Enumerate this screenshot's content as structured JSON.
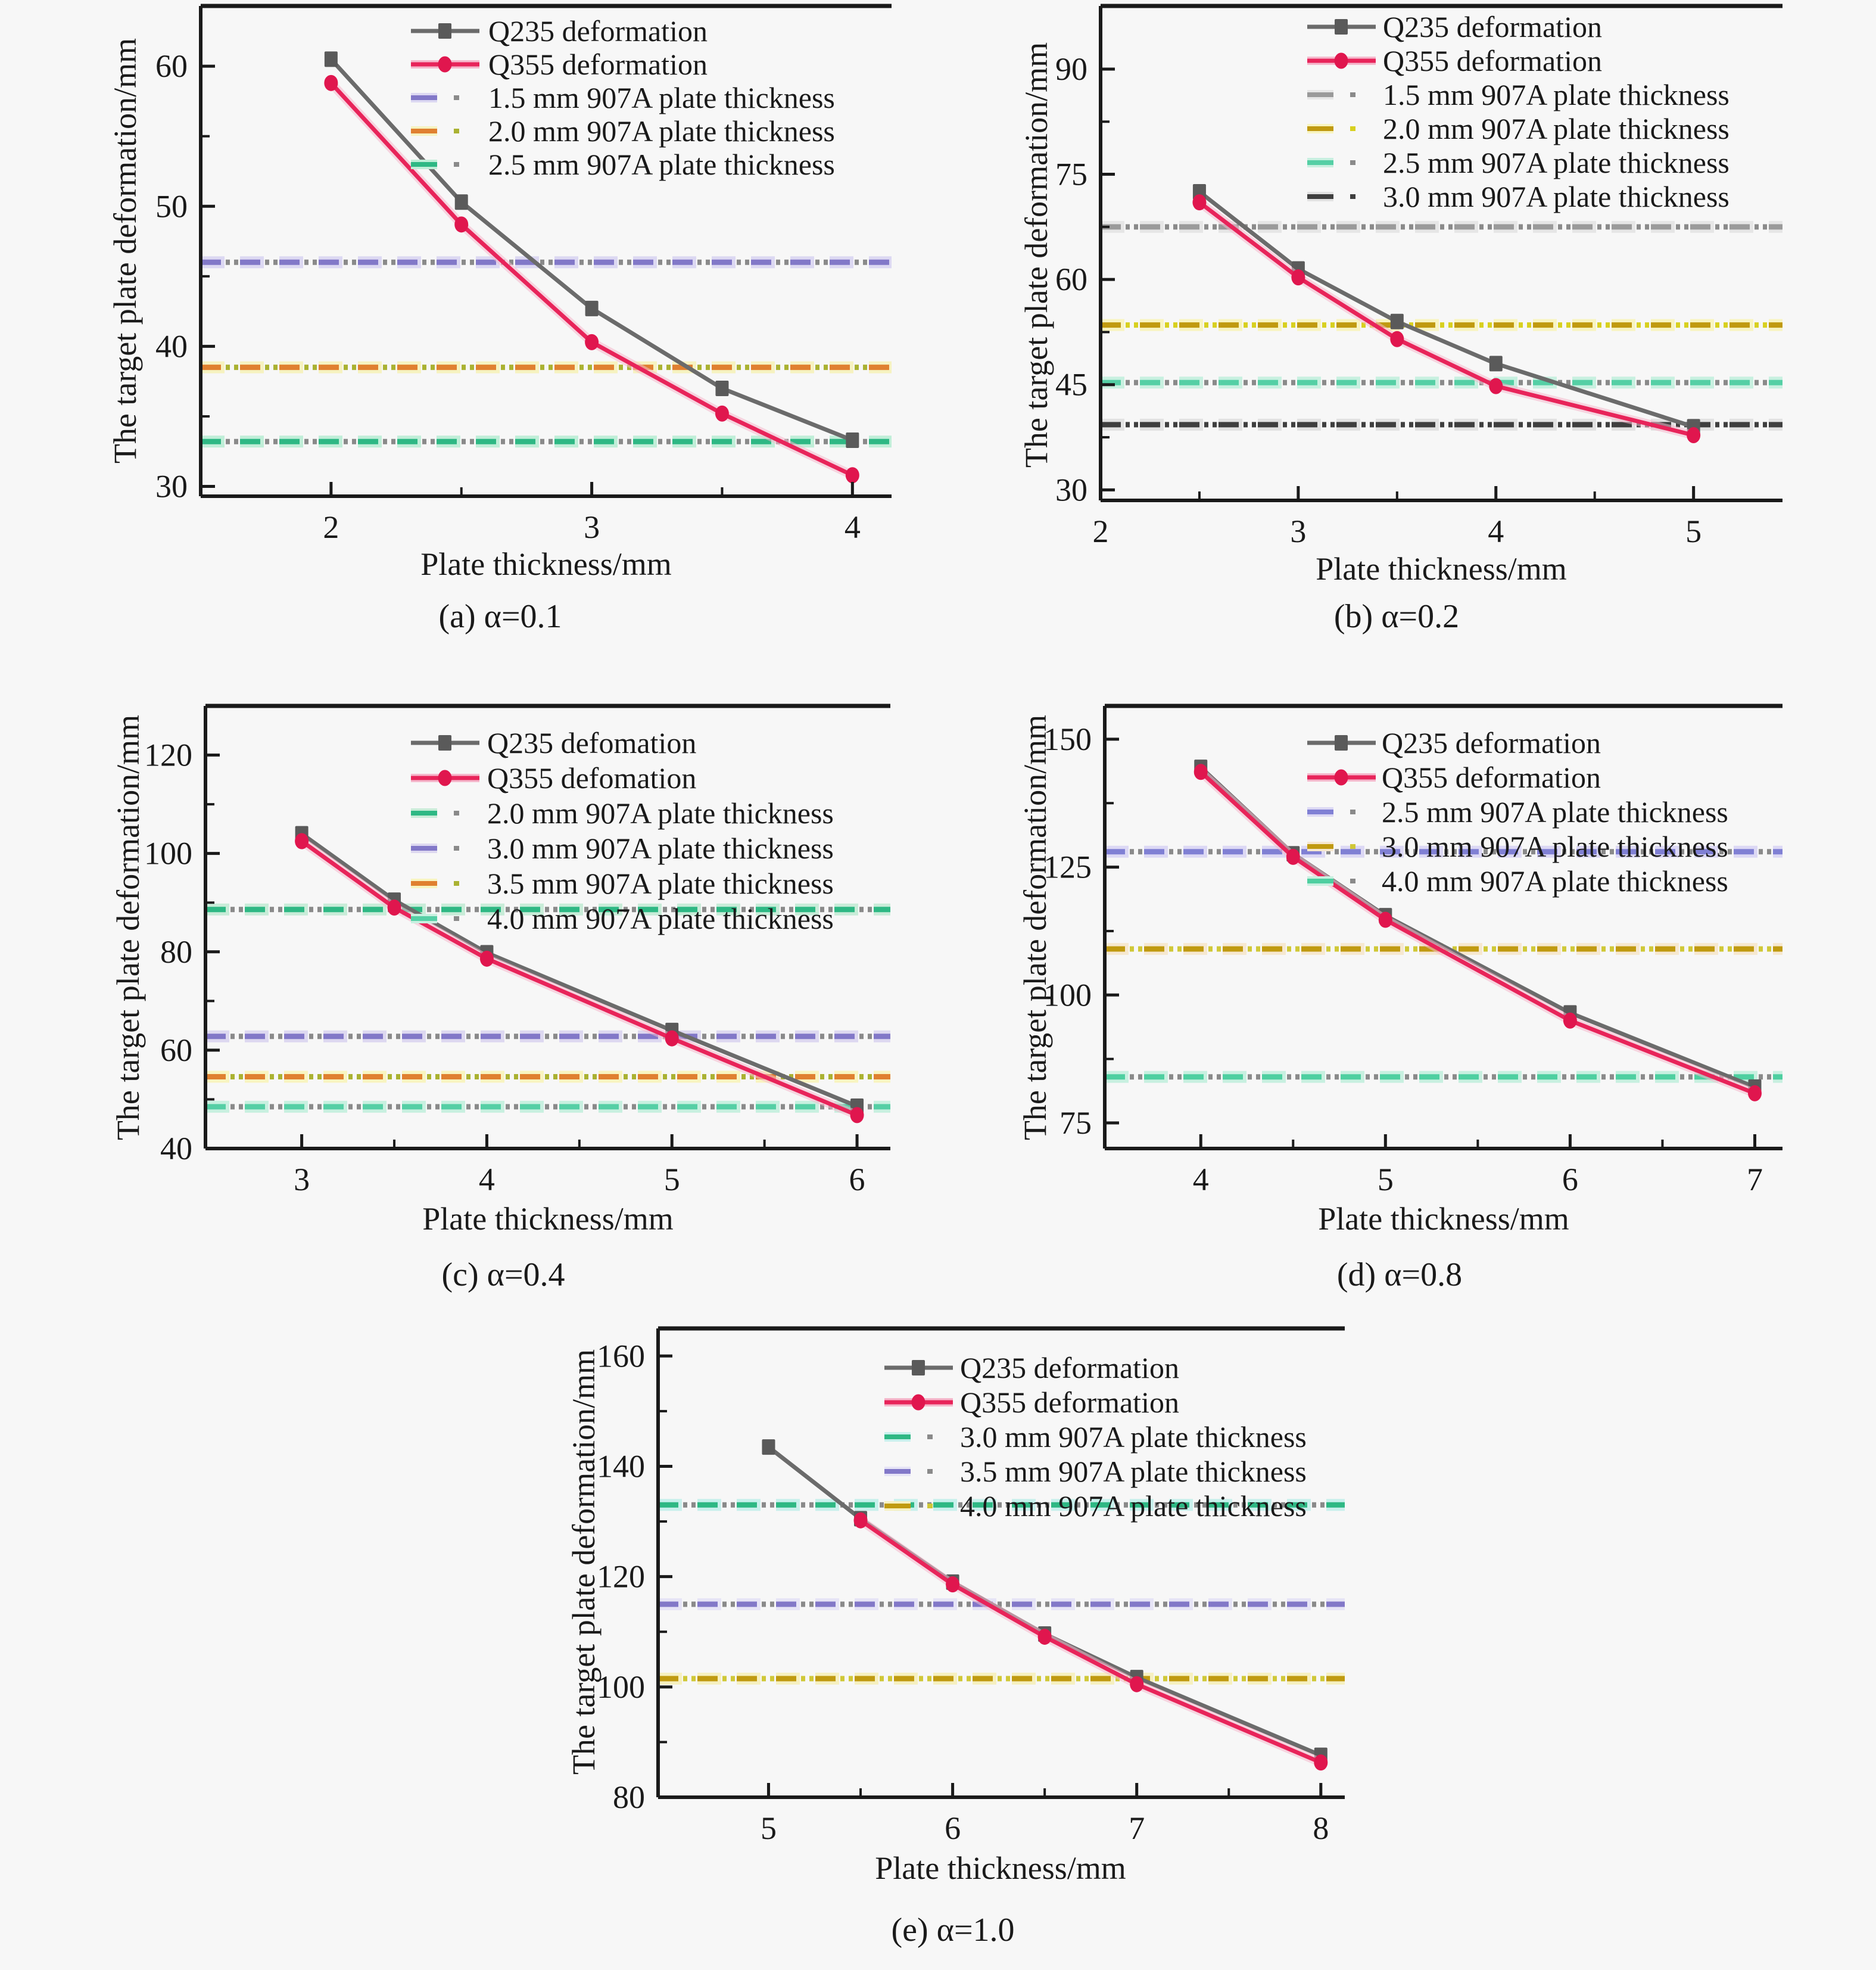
{
  "figure": {
    "background": "#f7f7f7",
    "x_axis_label": "Plate thickness/mm",
    "y_axis_label": "The target plate deformation/mm"
  },
  "palette": {
    "q235_gray": "#6b6b6b",
    "q355_crimson": "#e8245a",
    "purple": "#8278c8",
    "orange": "#e08030",
    "yellow_green": "#aab232",
    "sea_green": "#2eb884",
    "aquamarine": "#55cfa5",
    "dark_yellow": "#c09a10",
    "mid_gray": "#9a9a9a",
    "dark_gray": "#3f3f3f",
    "axis_black": "#1a1a1a"
  },
  "chart_data": [
    {
      "id": "a",
      "type": "line",
      "caption": "(a) α=0.1",
      "alpha_value": "0.1",
      "xlabel": "Plate thickness/mm",
      "ylabel": "The target plate deformation/mm",
      "xlim": [
        1.5,
        4.15
      ],
      "ylim": [
        29.3,
        64.3
      ],
      "x_ticks": [
        2,
        3,
        4
      ],
      "y_ticks": [
        30,
        40,
        50,
        60
      ],
      "legend_position": "upper right",
      "series": [
        {
          "name": "Q235 deformation",
          "marker": "square",
          "color": "#6b6b6b",
          "marker_color": "#5a5a5a",
          "x": [
            2,
            2.5,
            3,
            3.5,
            4
          ],
          "y": [
            60.5,
            50.3,
            42.7,
            37.0,
            33.3
          ]
        },
        {
          "name": "Q355 deformation",
          "marker": "circle",
          "color": "#e8245a",
          "marker_color": "#e0164e",
          "x": [
            2,
            2.5,
            3,
            3.5,
            4
          ],
          "y": [
            58.8,
            48.7,
            40.3,
            35.2,
            30.8
          ]
        }
      ],
      "hlines": [
        {
          "name": "1.5 mm 907A plate thickness",
          "value": 46.0,
          "dash_color": "#8278c8",
          "dot_color": "#8a8a8a",
          "halo_color": "#dcd8f2"
        },
        {
          "name": "2.0 mm 907A plate thickness",
          "value": 38.5,
          "dash_color": "#e08030",
          "dot_color": "#aab232",
          "halo_color": "#f6f2c0"
        },
        {
          "name": "2.5 mm 907A plate thickness",
          "value": 33.2,
          "dash_color": "#2eb884",
          "dot_color": "#8a8a8a",
          "halo_color": "#c0eed8"
        }
      ]
    },
    {
      "id": "b",
      "type": "line",
      "caption": "(b) α=0.2",
      "alpha_value": "0.2",
      "xlabel": "Plate thickness/mm",
      "ylabel": "The target plate deformation/mm",
      "xlim": [
        2.0,
        5.45
      ],
      "ylim": [
        28.5,
        99.0
      ],
      "x_ticks": [
        2,
        3,
        4,
        5
      ],
      "y_ticks": [
        30,
        45,
        60,
        75,
        90
      ],
      "legend_position": "upper right",
      "series": [
        {
          "name": "Q235 deformation",
          "marker": "square",
          "color": "#6b6b6b",
          "marker_color": "#5a5a5a",
          "x": [
            2.5,
            3,
            3.5,
            4,
            5
          ],
          "y": [
            72.5,
            61.5,
            54.0,
            48.0,
            39.0
          ]
        },
        {
          "name": "Q355 deformation",
          "marker": "circle",
          "color": "#e8245a",
          "marker_color": "#e0164e",
          "x": [
            2.5,
            3,
            3.5,
            4,
            5
          ],
          "y": [
            71.0,
            60.3,
            51.5,
            44.8,
            37.8
          ]
        }
      ],
      "hlines": [
        {
          "name": "1.5 mm 907A plate thickness",
          "value": 67.5,
          "dash_color": "#9a9a9a",
          "dot_color": "#8a8a8a",
          "halo_color": "#e6e6e6"
        },
        {
          "name": "2.0 mm 907A plate thickness",
          "value": 53.5,
          "dash_color": "#c09a10",
          "dot_color": "#d8d020",
          "halo_color": "#f8f4c0"
        },
        {
          "name": "2.5 mm 907A plate thickness",
          "value": 45.3,
          "dash_color": "#55cfa5",
          "dot_color": "#8a8a8a",
          "halo_color": "#c8f0e0"
        },
        {
          "name": "3.0 mm 907A plate thickness",
          "value": 39.3,
          "dash_color": "#3f3f3f",
          "dot_color": "#3f3f3f",
          "halo_color": "#e2e2e2"
        }
      ]
    },
    {
      "id": "c",
      "type": "line",
      "caption": "(c) α=0.4",
      "alpha_value": "0.4",
      "xlabel": "Plate thickness/mm",
      "ylabel": "The target plate deformation/mm",
      "xlim": [
        2.48,
        6.18
      ],
      "ylim": [
        40.0,
        130.0
      ],
      "x_ticks": [
        3,
        4,
        5,
        6
      ],
      "y_ticks": [
        40,
        60,
        80,
        100,
        120
      ],
      "legend_position": "upper right",
      "series": [
        {
          "name": "Q235 defomation",
          "marker": "square",
          "color": "#6b6b6b",
          "marker_color": "#5a5a5a",
          "x": [
            3,
            3.5,
            4,
            5,
            6
          ],
          "y": [
            104.0,
            90.5,
            79.8,
            64.0,
            48.6
          ]
        },
        {
          "name": "Q355 defomation",
          "marker": "circle",
          "color": "#e8245a",
          "marker_color": "#e0164e",
          "x": [
            3,
            3.5,
            4,
            5,
            6
          ],
          "y": [
            102.5,
            89.0,
            78.6,
            62.4,
            46.8
          ]
        }
      ],
      "hlines": [
        {
          "name": "2.0 mm 907A plate thickness",
          "value": 88.6,
          "dash_color": "#2eb884",
          "dot_color": "#8a8a8a",
          "halo_color": "#c8ecd8"
        },
        {
          "name": "3.0 mm 907A plate thickness",
          "value": 62.8,
          "dash_color": "#8278c8",
          "dot_color": "#8a8a8a",
          "halo_color": "#ddd8f0"
        },
        {
          "name": "3.5 mm 907A plate thickness",
          "value": 54.6,
          "dash_color": "#e08030",
          "dot_color": "#aab232",
          "halo_color": "#f8f4c0"
        },
        {
          "name": "4.0 mm 907A plate thickness",
          "value": 48.5,
          "dash_color": "#55cfa5",
          "dot_color": "#8a8a8a",
          "halo_color": "#c8f0e0"
        }
      ]
    },
    {
      "id": "d",
      "type": "line",
      "caption": "(d) α=0.8",
      "alpha_value": "0.8",
      "xlabel": "Plate thickness/mm",
      "ylabel": "The target plate deformation/mm",
      "xlim": [
        3.48,
        7.15
      ],
      "ylim": [
        70.0,
        156.5
      ],
      "x_ticks": [
        4,
        5,
        6,
        7
      ],
      "y_ticks": [
        75,
        100,
        125,
        150
      ],
      "legend_position": "upper right",
      "series": [
        {
          "name": "Q235 deformation",
          "marker": "square",
          "color": "#6b6b6b",
          "marker_color": "#5a5a5a",
          "x": [
            4,
            4.5,
            5,
            6,
            7
          ],
          "y": [
            144.5,
            127.6,
            115.5,
            96.5,
            82.0
          ]
        },
        {
          "name": "Q355 deformation",
          "marker": "circle",
          "color": "#e8245a",
          "marker_color": "#e0164e",
          "x": [
            4,
            4.5,
            5,
            6,
            7
          ],
          "y": [
            143.6,
            127.0,
            114.7,
            95.0,
            80.8
          ]
        }
      ],
      "hlines": [
        {
          "name": "2.5 mm 907A plate thickness",
          "value": 128.0,
          "dash_color": "#8080d4",
          "dot_color": "#8a8a8a",
          "halo_color": "#dcd8f4"
        },
        {
          "name": "3.0 mm 907A plate thickness",
          "value": 109.0,
          "dash_color": "#c09a10",
          "dot_color": "#d0c838",
          "halo_color": "#f6e8d0"
        },
        {
          "name": "4.0 mm 907A plate thickness",
          "value": 84.0,
          "dash_color": "#4ecfa0",
          "dot_color": "#8a8a8a",
          "halo_color": "#c8f0e0"
        }
      ]
    },
    {
      "id": "e",
      "type": "line",
      "caption": "(e) α=1.0",
      "alpha_value": "1.0",
      "xlabel": "Plate thickness/mm",
      "ylabel": "The target plate deformation/mm",
      "xlim": [
        4.4,
        8.13
      ],
      "ylim": [
        80.0,
        165.0
      ],
      "x_ticks": [
        5,
        6,
        7,
        8
      ],
      "y_ticks": [
        80,
        100,
        120,
        140,
        160
      ],
      "legend_position": "upper right",
      "series": [
        {
          "name": "Q235 deformation",
          "marker": "square",
          "color": "#6b6b6b",
          "marker_color": "#5a5a5a",
          "x": [
            5,
            5.5,
            6,
            6.5,
            7,
            8
          ],
          "y": [
            143.5,
            130.5,
            119.0,
            109.6,
            101.7,
            87.6
          ]
        },
        {
          "name": "Q355 deformation",
          "marker": "circle",
          "color": "#e8245a",
          "marker_color": "#e0164e",
          "x": [
            5.5,
            6,
            6.5,
            7,
            8
          ],
          "y": [
            130.2,
            118.6,
            109.1,
            100.5,
            86.3
          ]
        }
      ],
      "hlines": [
        {
          "name": "3.0 mm 907A plate thickness",
          "value": 133.0,
          "dash_color": "#2eb884",
          "dot_color": "#8a8a8a",
          "halo_color": "#c8f0ec"
        },
        {
          "name": "3.5 mm 907A plate thickness",
          "value": 115.0,
          "dash_color": "#8278c8",
          "dot_color": "#8a8a8a",
          "halo_color": "#e6e4f6"
        },
        {
          "name": "4.0 mm 907A plate thickness",
          "value": 101.5,
          "dash_color": "#c09a10",
          "dot_color": "#d0c838",
          "halo_color": "#f6f0c0"
        }
      ]
    }
  ]
}
